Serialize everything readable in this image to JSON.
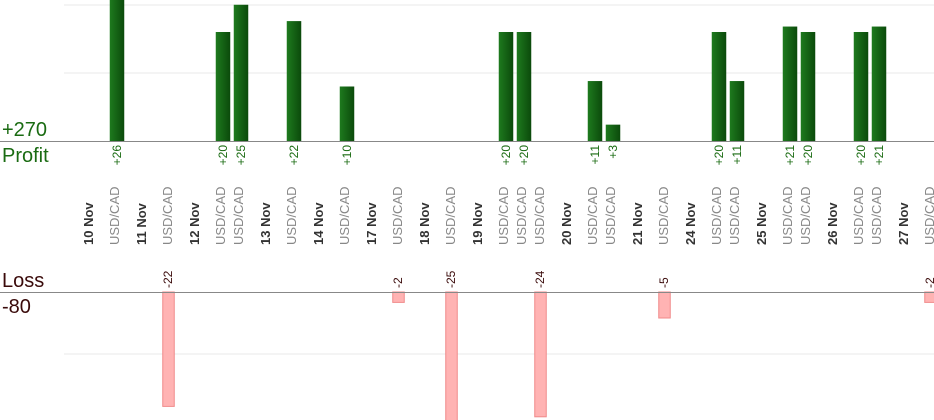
{
  "labels": {
    "profit_total": "+270",
    "profit": "Profit",
    "loss": "Loss",
    "loss_total": "-80"
  },
  "colors": {
    "profit_bar_dark": "#0b4a0b",
    "profit_bar_light": "#1e7a1e",
    "profit_text": "#1a6b12",
    "loss_bar": "#ffb3b3",
    "loss_bar_border": "#f08a8a",
    "loss_text": "#3a0a0a",
    "date_text": "#333333",
    "pair_text": "#888888",
    "grid": "#e8e8e8",
    "axis": "#888888"
  },
  "chart_data": {
    "type": "bar",
    "profit_ylim": [
      0,
      27
    ],
    "loss_ylim": [
      -22,
      0
    ],
    "days": [
      {
        "date": "10 Nov",
        "trades": [
          {
            "pair": "USD/CAD",
            "value": 26
          }
        ]
      },
      {
        "date": "11 Nov",
        "trades": [
          {
            "pair": "USD/CAD",
            "value": -22
          }
        ]
      },
      {
        "date": "12 Nov",
        "trades": [
          {
            "pair": "USD/CAD",
            "value": 20
          },
          {
            "pair": "USD/CAD",
            "value": 25
          }
        ]
      },
      {
        "date": "13 Nov",
        "trades": [
          {
            "pair": "USD/CAD",
            "value": 22
          }
        ]
      },
      {
        "date": "14 Nov",
        "trades": [
          {
            "pair": "USD/CAD",
            "value": 10
          }
        ]
      },
      {
        "date": "17 Nov",
        "trades": [
          {
            "pair": "USD/CAD",
            "value": -2
          }
        ]
      },
      {
        "date": "18 Nov",
        "trades": [
          {
            "pair": "USD/CAD",
            "value": -25
          }
        ]
      },
      {
        "date": "19 Nov",
        "trades": [
          {
            "pair": "USD/CAD",
            "value": 20
          },
          {
            "pair": "USD/CAD",
            "value": 20
          },
          {
            "pair": "USD/CAD",
            "value": -24
          }
        ]
      },
      {
        "date": "20 Nov",
        "trades": [
          {
            "pair": "USD/CAD",
            "value": 11
          },
          {
            "pair": "USD/CAD",
            "value": 3
          }
        ]
      },
      {
        "date": "21 Nov",
        "trades": [
          {
            "pair": "USD/CAD",
            "value": -5
          }
        ]
      },
      {
        "date": "24 Nov",
        "trades": [
          {
            "pair": "USD/CAD",
            "value": 20
          },
          {
            "pair": "USD/CAD",
            "value": 11
          }
        ]
      },
      {
        "date": "25 Nov",
        "trades": [
          {
            "pair": "USD/CAD",
            "value": 21
          },
          {
            "pair": "USD/CAD",
            "value": 20
          }
        ]
      },
      {
        "date": "26 Nov",
        "trades": [
          {
            "pair": "USD/CAD",
            "value": 20
          },
          {
            "pair": "USD/CAD",
            "value": 21
          }
        ]
      },
      {
        "date": "27 Nov",
        "trades": [
          {
            "pair": "USD/CAD",
            "value": -2
          }
        ]
      }
    ]
  }
}
